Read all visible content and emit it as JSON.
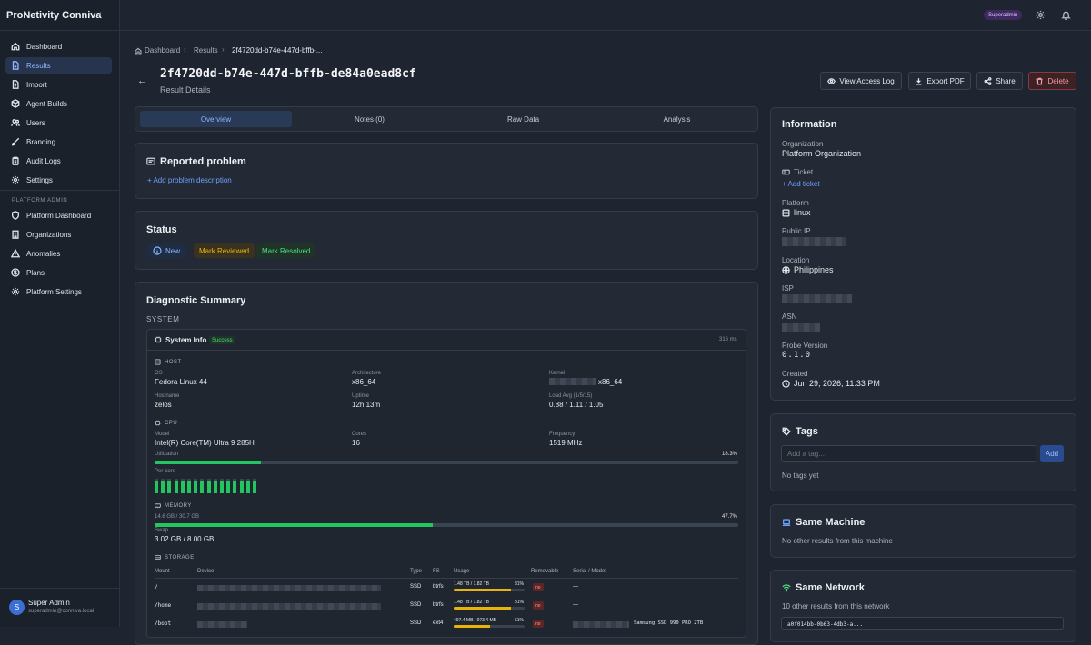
{
  "app": {
    "title": "ProNetivity Conniva"
  },
  "sidebar": {
    "items": [
      {
        "label": "Dashboard",
        "icon": "home-icon"
      },
      {
        "label": "Results",
        "icon": "file-icon",
        "active": true
      },
      {
        "label": "Import",
        "icon": "upload-icon"
      },
      {
        "label": "Agent Builds",
        "icon": "package-icon"
      },
      {
        "label": "Users",
        "icon": "users-icon"
      },
      {
        "label": "Branding",
        "icon": "brush-icon"
      },
      {
        "label": "Audit Logs",
        "icon": "clipboard-icon"
      },
      {
        "label": "Settings",
        "icon": "gear-icon"
      }
    ],
    "admin_label": "PLATFORM ADMIN",
    "admin_items": [
      {
        "label": "Platform Dashboard",
        "icon": "shield-icon"
      },
      {
        "label": "Organizations",
        "icon": "building-icon"
      },
      {
        "label": "Anomalies",
        "icon": "alert-icon"
      },
      {
        "label": "Plans",
        "icon": "dollar-icon"
      },
      {
        "label": "Platform Settings",
        "icon": "gear-icon"
      }
    ],
    "user": {
      "initial": "S",
      "name": "Super Admin",
      "email": "superadmin@conniva.local"
    }
  },
  "topbar": {
    "role_badge": "Superadmin"
  },
  "breadcrumb": {
    "home": "Dashboard",
    "section": "Results",
    "current": "2f4720dd-b74e-447d-bffb-..."
  },
  "header": {
    "title": "2f4720dd-b74e-447d-bffb-de84a0ead8cf",
    "subtitle": "Result Details",
    "actions": {
      "view_log": "View Access Log",
      "export": "Export PDF",
      "share": "Share",
      "delete": "Delete"
    }
  },
  "tabs": [
    {
      "label": "Overview",
      "active": true
    },
    {
      "label": "Notes (0)"
    },
    {
      "label": "Raw Data"
    },
    {
      "label": "Analysis"
    }
  ],
  "problem": {
    "title": "Reported problem",
    "add": "+ Add problem description"
  },
  "status": {
    "title": "Status",
    "new": "New",
    "reviewed": "Mark Reviewed",
    "resolved": "Mark Resolved"
  },
  "diagnostic": {
    "title": "Diagnostic Summary",
    "system_label": "SYSTEM",
    "sysinfo": {
      "title": "System Info",
      "badge": "Success",
      "time": "316 ms"
    },
    "host": {
      "head": "HOST",
      "os_label": "OS",
      "os": "Fedora Linux 44",
      "arch_label": "Architecture",
      "arch": "x86_64",
      "kernel_label": "Kernel",
      "kernel_suffix": "x86_64",
      "hostname_label": "Hostname",
      "hostname": "zelos",
      "uptime_label": "Uptime",
      "uptime": "12h 13m",
      "load_label": "Load Avg (1/5/15)",
      "load": "0.88 / 1.11 / 1.05"
    },
    "cpu": {
      "head": "CPU",
      "model_label": "Model",
      "model": "Intel(R) Core(TM) Ultra 9 285H",
      "cores_label": "Cores",
      "cores": "16",
      "freq_label": "Frequency",
      "freq": "1519 MHz",
      "util_label": "Utilization",
      "util": "18.3%",
      "util_value": 18.3,
      "percore_label": "Per-core",
      "per_core": [
        0.9,
        0.9,
        0.85,
        0.9,
        0.9,
        0.85,
        0.9,
        0.9,
        0.85,
        0.9,
        0.85,
        0.9,
        0.9,
        0.85,
        0.9,
        0.9
      ]
    },
    "memory": {
      "head": "MEMORY",
      "used": "14.6 GB / 30.7 GB",
      "percent": "47.7%",
      "percent_value": 47.7,
      "swap_label": "Swap",
      "swap": "3.02 GB / 8.00 GB"
    },
    "storage": {
      "head": "STORAGE",
      "columns": [
        "Mount",
        "Device",
        "Type",
        "FS",
        "Usage",
        "Removable",
        "Serial / Model"
      ],
      "rows": [
        {
          "mount": "/",
          "type": "SSD",
          "fs": "btrfs",
          "usage": "1.48 TB / 1.82 TB",
          "pct": "81%",
          "pct_value": 81,
          "removable": "no",
          "serial": "—"
        },
        {
          "mount": "/home",
          "type": "SSD",
          "fs": "btrfs",
          "usage": "1.48 TB / 1.82 TB",
          "pct": "81%",
          "pct_value": 81,
          "removable": "no",
          "serial": "—"
        },
        {
          "mount": "/boot",
          "type": "SSD",
          "fs": "ext4",
          "usage": "497.4 MB / 973.4 MB",
          "pct": "51%",
          "pct_value": 51,
          "removable": "no",
          "serial": "Samsung SSD 990 PRO 2TB"
        }
      ]
    }
  },
  "information": {
    "title": "Information",
    "org_label": "Organization",
    "org": "Platform Organization",
    "ticket_label": "Ticket",
    "ticket_add": "+ Add ticket",
    "platform_label": "Platform",
    "platform": "linux",
    "ip_label": "Public IP",
    "location_label": "Location",
    "location": "Philippines",
    "isp_label": "ISP",
    "asn_label": "ASN",
    "probe_label": "Probe Version",
    "probe": "0.1.0",
    "created_label": "Created",
    "created": "Jun 29, 2026, 11:33 PM"
  },
  "tags": {
    "title": "Tags",
    "placeholder": "Add a tag...",
    "add": "Add",
    "empty": "No tags yet"
  },
  "same_machine": {
    "title": "Same Machine",
    "text": "No other results from this machine"
  },
  "same_network": {
    "title": "Same Network",
    "text": "10 other results from this network",
    "first_item": "a0f014bb-0b63-4db3-a..."
  }
}
